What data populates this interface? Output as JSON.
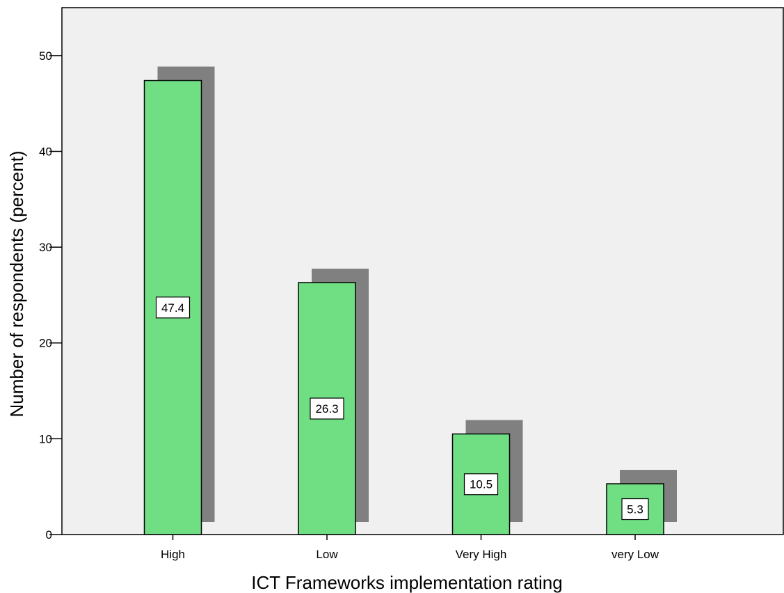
{
  "chart_data": {
    "type": "bar",
    "title": "",
    "xlabel": "ICT Frameworks implementation rating",
    "ylabel": "Number of respondents (percent)",
    "categories": [
      "High",
      "Low",
      "Very High",
      "very Low"
    ],
    "values": [
      47.4,
      26.3,
      10.5,
      5.3
    ],
    "value_labels": [
      "47.4",
      "26.3",
      "10.5",
      "5.3"
    ],
    "ylim": [
      0,
      55
    ],
    "yticks": [
      0,
      10,
      20,
      30,
      40,
      50
    ],
    "grid": false,
    "legend": "none",
    "bar_color": "#70DF84",
    "shadow_color": "#808080",
    "plot_background": "#F0F0F0"
  }
}
